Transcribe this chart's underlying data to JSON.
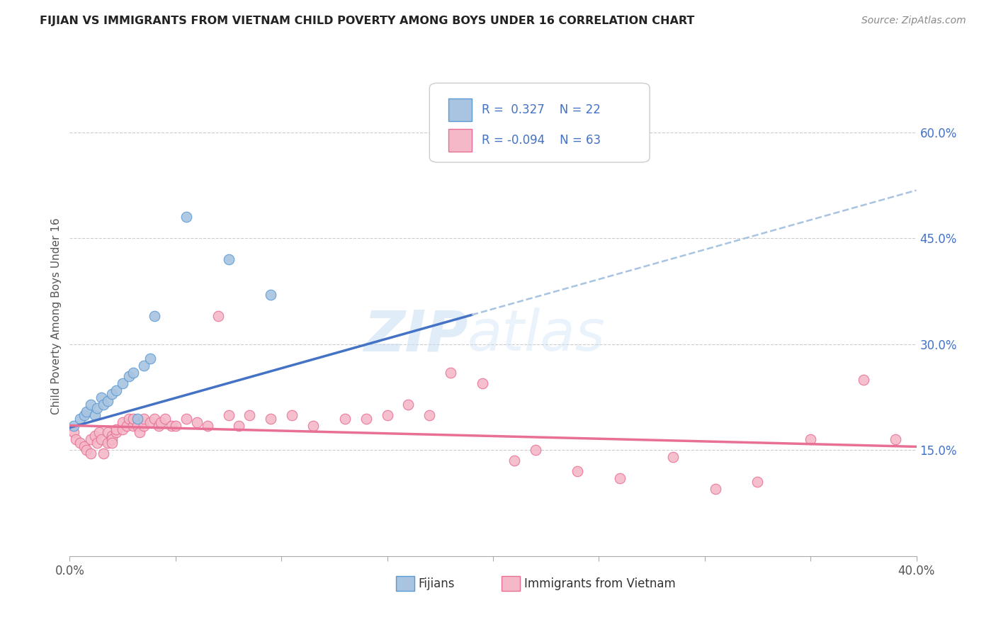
{
  "title": "FIJIAN VS IMMIGRANTS FROM VIETNAM CHILD POVERTY AMONG BOYS UNDER 16 CORRELATION CHART",
  "source": "Source: ZipAtlas.com",
  "ylabel": "Child Poverty Among Boys Under 16",
  "xlim": [
    0.0,
    0.4
  ],
  "ylim": [
    0.0,
    0.68
  ],
  "xtick_positions": [
    0.0,
    0.05,
    0.1,
    0.15,
    0.2,
    0.25,
    0.3,
    0.35,
    0.4
  ],
  "xtick_labels_show": {
    "0.0": "0.0%",
    "0.40": "40.0%"
  },
  "yticks_right": [
    0.15,
    0.3,
    0.45,
    0.6
  ],
  "ytick_right_labels": [
    "15.0%",
    "30.0%",
    "45.0%",
    "60.0%"
  ],
  "fijian_color": "#a8c4e0",
  "vietnam_color": "#f4b8c8",
  "fijian_edge_color": "#5b9bd5",
  "vietnam_edge_color": "#e87095",
  "fijian_line_color": "#4472c4",
  "vietnam_line_color": "#e87095",
  "dashed_line_color": "#a8c4e0",
  "fijian_x": [
    0.002,
    0.005,
    0.007,
    0.008,
    0.01,
    0.012,
    0.013,
    0.015,
    0.016,
    0.018,
    0.02,
    0.022,
    0.025,
    0.028,
    0.03,
    0.032,
    0.035,
    0.038,
    0.04,
    0.055,
    0.075,
    0.095
  ],
  "fijian_y": [
    0.185,
    0.195,
    0.2,
    0.205,
    0.215,
    0.2,
    0.21,
    0.225,
    0.215,
    0.22,
    0.23,
    0.235,
    0.245,
    0.255,
    0.26,
    0.195,
    0.27,
    0.28,
    0.34,
    0.48,
    0.42,
    0.37
  ],
  "vietnam_x": [
    0.002,
    0.003,
    0.005,
    0.007,
    0.008,
    0.01,
    0.01,
    0.012,
    0.013,
    0.014,
    0.015,
    0.016,
    0.018,
    0.018,
    0.02,
    0.02,
    0.02,
    0.022,
    0.022,
    0.025,
    0.025,
    0.027,
    0.028,
    0.03,
    0.03,
    0.032,
    0.033,
    0.035,
    0.035,
    0.038,
    0.04,
    0.042,
    0.043,
    0.045,
    0.048,
    0.05,
    0.055,
    0.06,
    0.065,
    0.07,
    0.075,
    0.08,
    0.085,
    0.095,
    0.105,
    0.115,
    0.13,
    0.14,
    0.15,
    0.16,
    0.17,
    0.18,
    0.195,
    0.21,
    0.22,
    0.24,
    0.26,
    0.285,
    0.305,
    0.325,
    0.35,
    0.375,
    0.39
  ],
  "vietnam_y": [
    0.175,
    0.165,
    0.16,
    0.155,
    0.15,
    0.145,
    0.165,
    0.17,
    0.16,
    0.175,
    0.165,
    0.145,
    0.16,
    0.175,
    0.17,
    0.165,
    0.16,
    0.175,
    0.18,
    0.18,
    0.19,
    0.185,
    0.195,
    0.185,
    0.195,
    0.185,
    0.175,
    0.185,
    0.195,
    0.19,
    0.195,
    0.185,
    0.19,
    0.195,
    0.185,
    0.185,
    0.195,
    0.19,
    0.185,
    0.34,
    0.2,
    0.185,
    0.2,
    0.195,
    0.2,
    0.185,
    0.195,
    0.195,
    0.2,
    0.215,
    0.2,
    0.26,
    0.245,
    0.135,
    0.15,
    0.12,
    0.11,
    0.14,
    0.095,
    0.105,
    0.165,
    0.25,
    0.165
  ]
}
